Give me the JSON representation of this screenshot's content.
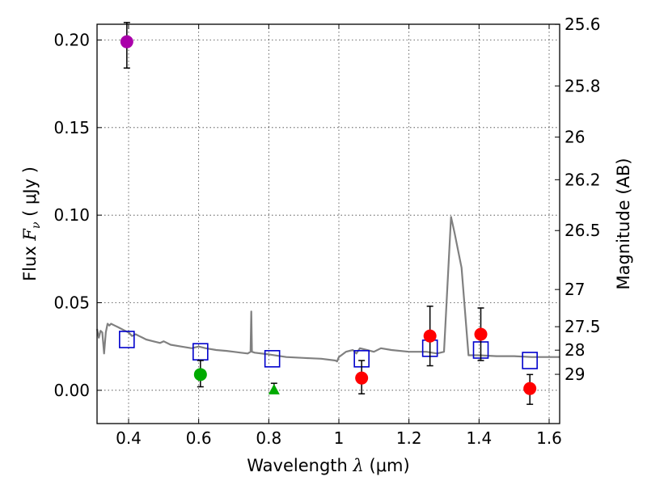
{
  "chart_data": {
    "type": "scatter",
    "title": "",
    "xlabel": {
      "prefix": "Wavelength ",
      "symbol": "λ",
      "units": " (μm)"
    },
    "ylabel": {
      "prefix": "Flux ",
      "symbol": "F",
      "subscript": "ν",
      "units": " ( μJy )"
    },
    "y2label": "Magnitude (AB)",
    "xlim": [
      0.31,
      1.63
    ],
    "ylim": [
      -0.019,
      0.209
    ],
    "grid": true,
    "x_ticks": [
      {
        "value": 0.4,
        "label": "0.4"
      },
      {
        "value": 0.6,
        "label": "0.6"
      },
      {
        "value": 0.8,
        "label": "0.8"
      },
      {
        "value": 1.0,
        "label": "1"
      },
      {
        "value": 1.2,
        "label": "1.2"
      },
      {
        "value": 1.4,
        "label": "1.4"
      },
      {
        "value": 1.6,
        "label": "1.6"
      }
    ],
    "y_ticks": [
      {
        "value": 0.0,
        "label": "0.00"
      },
      {
        "value": 0.05,
        "label": "0.05"
      },
      {
        "value": 0.1,
        "label": "0.10"
      },
      {
        "value": 0.15,
        "label": "0.15"
      },
      {
        "value": 0.2,
        "label": "0.20"
      }
    ],
    "y2_ticks": [
      {
        "value": 25.6,
        "label": "25.6"
      },
      {
        "value": 25.8,
        "label": "25.8"
      },
      {
        "value": 26.0,
        "label": "26"
      },
      {
        "value": 26.2,
        "label": "26.2"
      },
      {
        "value": 26.5,
        "label": "26.5"
      },
      {
        "value": 27.0,
        "label": "27"
      },
      {
        "value": 27.5,
        "label": "27.5"
      },
      {
        "value": 28.0,
        "label": "28"
      },
      {
        "value": 29.0,
        "label": "29"
      }
    ],
    "series": [
      {
        "kind": "line",
        "color": "#808080",
        "x": [
          0.31,
          0.315,
          0.32,
          0.325,
          0.33,
          0.335,
          0.34,
          0.345,
          0.35,
          0.36,
          0.37,
          0.38,
          0.39,
          0.4,
          0.41,
          0.42,
          0.43,
          0.44,
          0.45,
          0.47,
          0.49,
          0.5,
          0.52,
          0.55,
          0.58,
          0.6,
          0.62,
          0.65,
          0.68,
          0.7,
          0.72,
          0.74,
          0.748,
          0.75,
          0.752,
          0.76,
          0.8,
          0.85,
          0.9,
          0.95,
          0.99,
          0.995,
          1.0,
          1.02,
          1.04,
          1.05,
          1.06,
          1.08,
          1.1,
          1.12,
          1.15,
          1.2,
          1.25,
          1.28,
          1.3,
          1.32,
          1.33,
          1.35,
          1.37,
          1.4,
          1.45,
          1.5,
          1.55,
          1.6,
          1.63
        ],
        "y": [
          0.035,
          0.03,
          0.034,
          0.033,
          0.021,
          0.033,
          0.038,
          0.037,
          0.038,
          0.037,
          0.036,
          0.035,
          0.034,
          0.033,
          0.031,
          0.032,
          0.031,
          0.03,
          0.029,
          0.028,
          0.027,
          0.028,
          0.026,
          0.025,
          0.024,
          0.025,
          0.024,
          0.023,
          0.0225,
          0.022,
          0.0215,
          0.021,
          0.022,
          0.045,
          0.022,
          0.0215,
          0.0205,
          0.019,
          0.0185,
          0.018,
          0.017,
          0.0165,
          0.019,
          0.022,
          0.023,
          0.021,
          0.024,
          0.023,
          0.022,
          0.024,
          0.023,
          0.022,
          0.022,
          0.021,
          0.022,
          0.099,
          0.09,
          0.07,
          0.02,
          0.02,
          0.0195,
          0.0195,
          0.019,
          0.019,
          0.019
        ]
      },
      {
        "kind": "points",
        "marker": "open-square",
        "color": "#0000cc",
        "x": [
          0.395,
          0.605,
          0.81,
          1.065,
          1.26,
          1.405,
          1.545
        ],
        "y": [
          0.029,
          0.022,
          0.018,
          0.018,
          0.024,
          0.023,
          0.017
        ]
      }
    ],
    "points": [
      {
        "x": 0.395,
        "y": 0.199,
        "err_low": 0.184,
        "err_high": 0.21,
        "color": "#aa00aa",
        "marker": "circle"
      },
      {
        "x": 0.605,
        "y": 0.009,
        "err_low": 0.002,
        "err_high": 0.017,
        "color": "#00aa00",
        "marker": "circle"
      },
      {
        "x": 0.815,
        "y": 0.0,
        "err_low": 0.0,
        "err_high": 0.004,
        "color": "#00aa00",
        "marker": "triangle"
      },
      {
        "x": 1.065,
        "y": 0.007,
        "err_low": -0.002,
        "err_high": 0.017,
        "color": "#ff0000",
        "marker": "circle"
      },
      {
        "x": 1.26,
        "y": 0.031,
        "err_low": 0.014,
        "err_high": 0.048,
        "color": "#ff0000",
        "marker": "circle"
      },
      {
        "x": 1.405,
        "y": 0.032,
        "err_low": 0.017,
        "err_high": 0.047,
        "color": "#ff0000",
        "marker": "circle"
      },
      {
        "x": 1.545,
        "y": 0.001,
        "err_low": -0.008,
        "err_high": 0.009,
        "color": "#ff0000",
        "marker": "circle"
      }
    ]
  }
}
